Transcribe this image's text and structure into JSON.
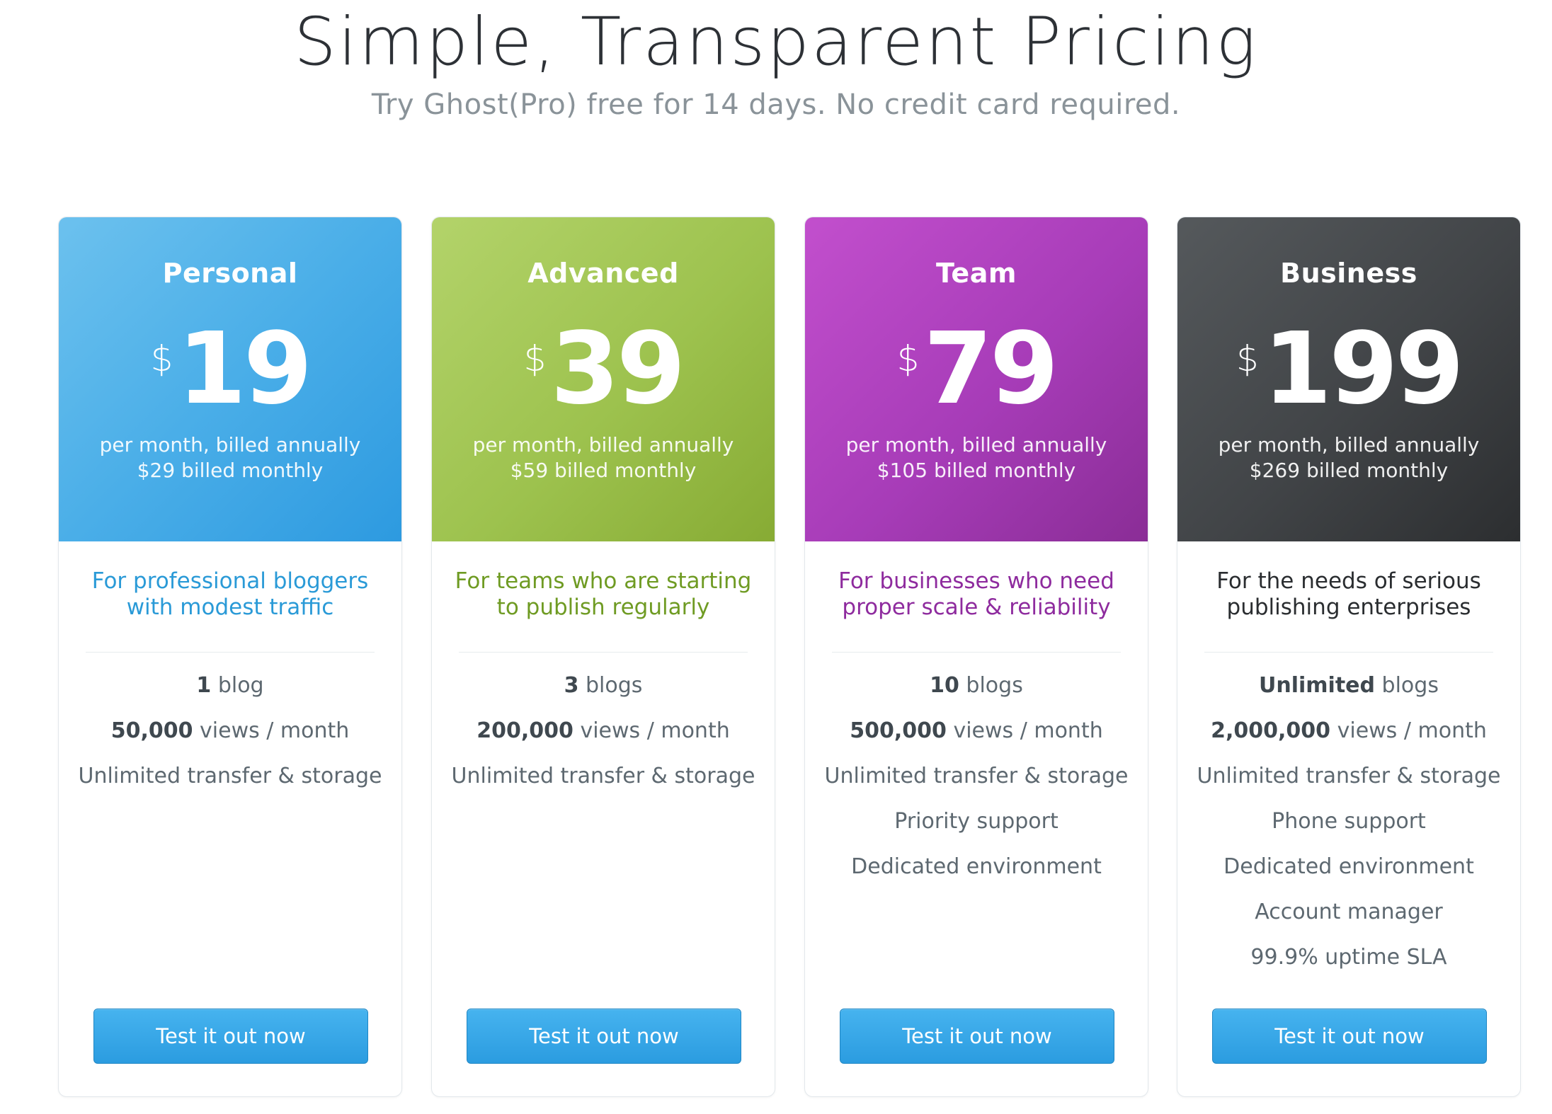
{
  "header": {
    "title": "Simple, Transparent Pricing",
    "subtitle": "Try Ghost(Pro) free for 14 days. No credit card required."
  },
  "plans": [
    {
      "name": "Personal",
      "currency": "$",
      "price": "19",
      "billing_annual": "per month, billed annually",
      "billing_monthly": "$29 billed monthly",
      "tagline_line1": "For professional bloggers",
      "tagline_line2": "with modest traffic",
      "features": [
        {
          "bold": "1",
          "rest": " blog"
        },
        {
          "bold": "50,000",
          "rest": " views / month"
        },
        {
          "bold": "",
          "rest": "Unlimited transfer & storage"
        }
      ],
      "cta": "Test it out now",
      "color": "#4aaee8"
    },
    {
      "name": "Advanced",
      "currency": "$",
      "price": "39",
      "billing_annual": "per month, billed annually",
      "billing_monthly": "$59 billed monthly",
      "tagline_line1": "For teams who are starting",
      "tagline_line2": "to publish regularly",
      "features": [
        {
          "bold": "3",
          "rest": " blogs"
        },
        {
          "bold": "200,000",
          "rest": " views / month"
        },
        {
          "bold": "",
          "rest": "Unlimited transfer & storage"
        }
      ],
      "cta": "Test it out now",
      "color": "#9dc24e"
    },
    {
      "name": "Team",
      "currency": "$",
      "price": "79",
      "billing_annual": "per month, billed annually",
      "billing_monthly": "$105 billed monthly",
      "tagline_line1": "For businesses who need",
      "tagline_line2": "proper scale & reliability",
      "features": [
        {
          "bold": "10",
          "rest": " blogs"
        },
        {
          "bold": "500,000",
          "rest": " views / month"
        },
        {
          "bold": "",
          "rest": "Unlimited transfer & storage"
        },
        {
          "bold": "",
          "rest": "Priority support"
        },
        {
          "bold": "",
          "rest": "Dedicated environment"
        }
      ],
      "cta": "Test it out now",
      "color": "#a73cb8"
    },
    {
      "name": "Business",
      "currency": "$",
      "price": "199",
      "billing_annual": "per month, billed annually",
      "billing_monthly": "$269 billed monthly",
      "tagline_line1": "For the needs of serious",
      "tagline_line2": "publishing enterprises",
      "features": [
        {
          "bold": "Unlimited",
          "rest": " blogs"
        },
        {
          "bold": "2,000,000",
          "rest": " views / month"
        },
        {
          "bold": "",
          "rest": "Unlimited transfer & storage"
        },
        {
          "bold": "",
          "rest": "Phone support"
        },
        {
          "bold": "",
          "rest": "Dedicated environment"
        },
        {
          "bold": "",
          "rest": "Account manager"
        },
        {
          "bold": "",
          "rest": "99.9% uptime SLA"
        }
      ],
      "cta": "Test it out now",
      "color": "#414447"
    }
  ]
}
